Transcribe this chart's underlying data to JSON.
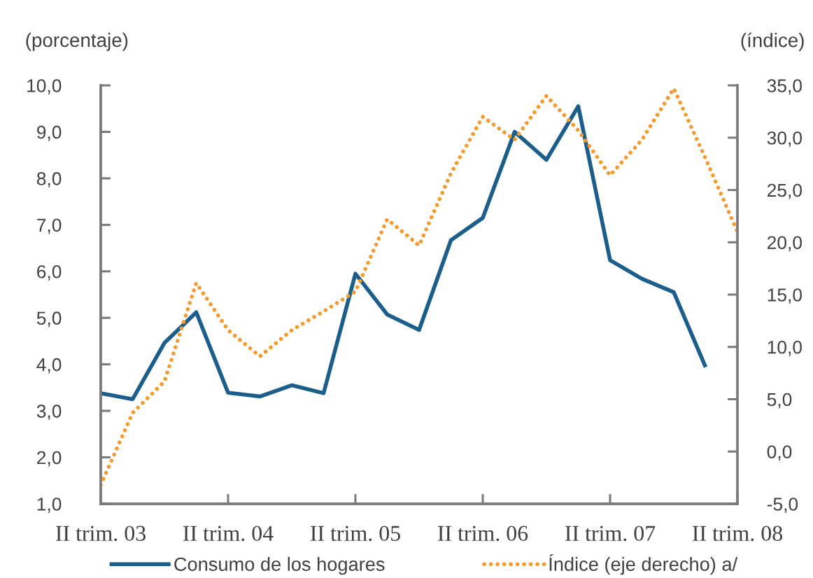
{
  "chart_data": {
    "type": "line",
    "ylabel": "(porcentaje)",
    "y2label": "(índice)",
    "categories": [
      "II trim. 03",
      null,
      null,
      null,
      "II trim. 04",
      null,
      null,
      null,
      "II trim. 05",
      null,
      null,
      null,
      "II trim. 06",
      null,
      null,
      null,
      "II trim. 07",
      null,
      null,
      null,
      "II trim. 08"
    ],
    "series": [
      {
        "name": "Consumo de los hogares",
        "color": "#1b5e8c",
        "line_style": "solid",
        "values": [
          3.38,
          3.25,
          4.46,
          5.12,
          3.39,
          3.31,
          3.55,
          3.38,
          5.95,
          5.07,
          4.74,
          6.67,
          7.15,
          9.0,
          8.4,
          9.55,
          6.24,
          5.84,
          5.55,
          3.94,
          null
        ]
      },
      {
        "name": "Índice (eje derecho) a/",
        "color": "#f59a2c",
        "line_style": "dotted",
        "axis": "y2",
        "values": [
          -3.2,
          3.7,
          6.7,
          16.1,
          11.6,
          9.1,
          11.6,
          13.4,
          15.3,
          22.2,
          19.7,
          26.6,
          32.0,
          29.8,
          34.0,
          30.7,
          26.4,
          29.8,
          34.7,
          28.0,
          21.0
        ]
      }
    ],
    "ylim": [
      1,
      10
    ],
    "yticks": [
      {
        "value": 1,
        "label": "1,0"
      },
      {
        "value": 2,
        "label": "2,0"
      },
      {
        "value": 3,
        "label": "3,0"
      },
      {
        "value": 4,
        "label": "4,0"
      },
      {
        "value": 5,
        "label": "5,0"
      },
      {
        "value": 6,
        "label": "6,0"
      },
      {
        "value": 7,
        "label": "7,0"
      },
      {
        "value": 8,
        "label": "8,0"
      },
      {
        "value": 9,
        "label": "9,0"
      },
      {
        "value": 10,
        "label": "10,0"
      }
    ],
    "y2lim": [
      -5,
      35
    ],
    "y2ticks": [
      {
        "value": -5,
        "label": "-5,0"
      },
      {
        "value": 0,
        "label": "0,0"
      },
      {
        "value": 5,
        "label": "5,0"
      },
      {
        "value": 10,
        "label": "10,0"
      },
      {
        "value": 15,
        "label": "15,0"
      },
      {
        "value": 20,
        "label": "20,0"
      },
      {
        "value": 25,
        "label": "25,0"
      },
      {
        "value": 30,
        "label": "30,0"
      },
      {
        "value": 35,
        "label": "35,0"
      }
    ],
    "legend": "bottom"
  }
}
